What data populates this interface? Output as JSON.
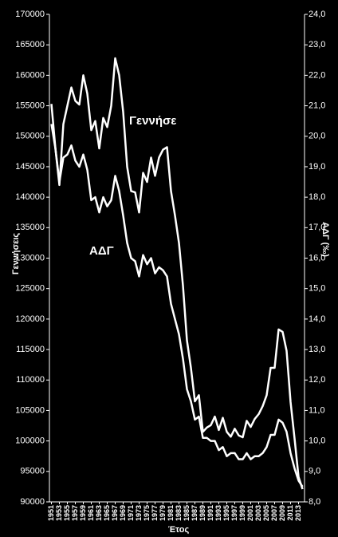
{
  "chart_data": {
    "type": "line",
    "x": [
      1951,
      1952,
      1953,
      1954,
      1955,
      1956,
      1957,
      1958,
      1959,
      1960,
      1961,
      1962,
      1963,
      1964,
      1965,
      1966,
      1967,
      1968,
      1969,
      1970,
      1971,
      1972,
      1973,
      1974,
      1975,
      1976,
      1977,
      1978,
      1979,
      1980,
      1981,
      1982,
      1983,
      1984,
      1985,
      1986,
      1987,
      1988,
      1989,
      1990,
      1991,
      1992,
      1993,
      1994,
      1995,
      1996,
      1997,
      1998,
      1999,
      2000,
      2001,
      2002,
      2003,
      2004,
      2005,
      2006,
      2007,
      2008,
      2009,
      2010,
      2011,
      2012,
      2013,
      2014
    ],
    "xlim": [
      1950.5,
      2014.5
    ],
    "xticks": [
      1951,
      1953,
      1955,
      1957,
      1959,
      1961,
      1963,
      1965,
      1967,
      1969,
      1971,
      1973,
      1975,
      1977,
      1979,
      1981,
      1983,
      1985,
      1987,
      1989,
      1991,
      1993,
      1995,
      1997,
      1999,
      2001,
      2003,
      2005,
      2007,
      2009,
      2011,
      2013
    ],
    "xlabel": "Έτος",
    "ylabel": "Γεννήσεις",
    "y2label": "ΑΔΓ (‰)",
    "ylim": [
      90000,
      170000
    ],
    "yticks": [
      90000,
      95000,
      100000,
      105000,
      110000,
      115000,
      120000,
      125000,
      130000,
      135000,
      140000,
      145000,
      150000,
      155000,
      160000,
      165000,
      170000
    ],
    "y2lim": [
      8,
      24
    ],
    "y2ticks": [
      {
        "value": 8,
        "label": "8,0"
      },
      {
        "value": 9,
        "label": "9,0"
      },
      {
        "value": 10,
        "label": "10,0"
      },
      {
        "value": 11,
        "label": "11,0"
      },
      {
        "value": 12,
        "label": "12,0"
      },
      {
        "value": 13,
        "label": "13,0"
      },
      {
        "value": 14,
        "label": "14,0"
      },
      {
        "value": 15,
        "label": "15,0"
      },
      {
        "value": 16,
        "label": "16,0"
      },
      {
        "value": 17,
        "label": "17,0"
      },
      {
        "value": 18,
        "label": "18,0"
      },
      {
        "value": 19,
        "label": "19,0"
      },
      {
        "value": 20,
        "label": "20,0"
      },
      {
        "value": 21,
        "label": "21,0"
      },
      {
        "value": 22,
        "label": "22,0"
      },
      {
        "value": 23,
        "label": "23,0"
      },
      {
        "value": 24,
        "label": "24,0"
      }
    ],
    "series": [
      {
        "name": "Γεννήσε",
        "color": "#ffffff",
        "values": [
          155300,
          148000,
          142000,
          152000,
          155000,
          158000,
          155800,
          155200,
          160000,
          157000,
          151000,
          152500,
          148000,
          153000,
          151500,
          155000,
          162800,
          160000,
          154000,
          145000,
          141000,
          140800,
          137500,
          144000,
          142500,
          146500,
          143500,
          146500,
          147800,
          148200,
          141000,
          137000,
          132500,
          125500,
          116500,
          112000,
          106500,
          107500,
          101500,
          102200,
          102600,
          104000,
          101800,
          103800,
          101500,
          100700,
          102000,
          100900,
          100600,
          103300,
          102300,
          103600,
          104400,
          105700,
          107500,
          112000,
          112000,
          118300,
          117900,
          114800,
          106400,
          100400,
          94100,
          92100
        ]
      },
      {
        "name": "ΑΔΓ",
        "color": "#ffffff",
        "axis": "y2",
        "values": [
          20.4,
          19.6,
          18.5,
          19.3,
          19.4,
          19.7,
          19.2,
          19.0,
          19.4,
          18.9,
          17.9,
          18.0,
          17.5,
          18.0,
          17.7,
          17.9,
          18.7,
          18.2,
          17.4,
          16.5,
          16.0,
          15.9,
          15.4,
          16.1,
          15.8,
          16.0,
          15.5,
          15.7,
          15.6,
          15.4,
          14.5,
          14.0,
          13.5,
          12.7,
          11.7,
          11.3,
          10.7,
          10.8,
          10.1,
          10.1,
          10.0,
          10.0,
          9.7,
          9.8,
          9.5,
          9.6,
          9.6,
          9.4,
          9.4,
          9.6,
          9.4,
          9.5,
          9.5,
          9.6,
          9.8,
          10.2,
          10.2,
          10.7,
          10.6,
          10.3,
          9.6,
          9.1,
          8.7,
          8.5
        ]
      }
    ]
  }
}
